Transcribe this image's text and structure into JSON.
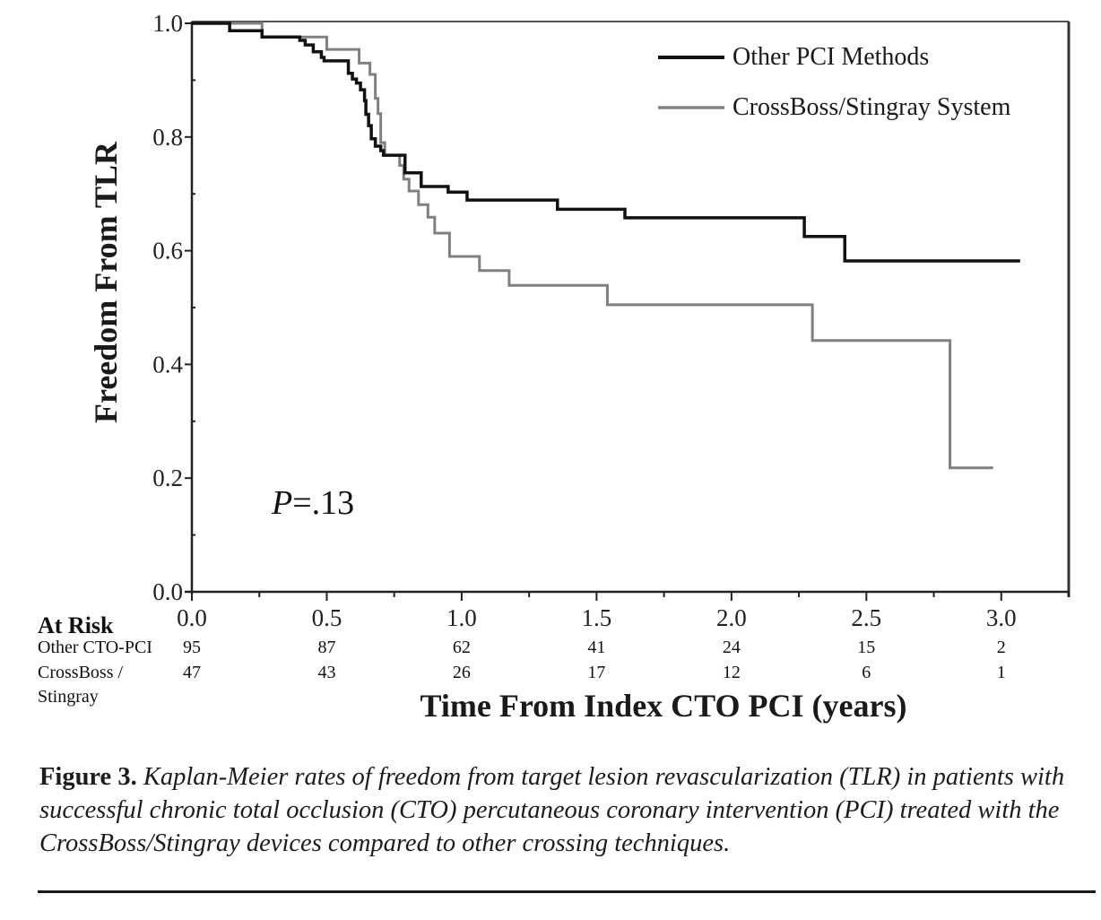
{
  "chart_data": {
    "type": "line",
    "subtype": "kaplan-meier-step",
    "title": "",
    "xlabel": "Time From Index CTO PCI (years)",
    "ylabel": "Freedom From TLR",
    "xlim": [
      0,
      3.25
    ],
    "ylim": [
      0,
      1.0
    ],
    "x_ticks": [
      0.0,
      0.5,
      1.0,
      1.5,
      2.0,
      2.5,
      3.0
    ],
    "x_tick_labels": [
      "0.0",
      "0.5",
      "1.0",
      "1.5",
      "2.0",
      "2.5",
      "3.0"
    ],
    "x_minor_ticks": [
      0.25,
      0.75,
      1.25,
      1.75,
      2.25,
      2.75,
      3.25
    ],
    "y_ticks": [
      0.0,
      0.2,
      0.4,
      0.6,
      0.8,
      1.0
    ],
    "y_tick_labels": [
      "0.0",
      "0.2",
      "0.4",
      "0.6",
      "0.8",
      "1.0"
    ],
    "y_minor_ticks": [
      0.1,
      0.3,
      0.5,
      0.7,
      0.9
    ],
    "grid": false,
    "legend_position": "top-right",
    "annotation": {
      "p_label": "P",
      "p_value": "=.13"
    },
    "series": [
      {
        "name": "Other PCI Methods",
        "color": "#111111",
        "end_time": 3.07,
        "steps": [
          [
            0,
            1.0
          ],
          [
            0.14,
            0.987
          ],
          [
            0.26,
            0.976
          ],
          [
            0.4,
            0.97
          ],
          [
            0.42,
            0.962
          ],
          [
            0.45,
            0.95
          ],
          [
            0.48,
            0.94
          ],
          [
            0.49,
            0.934
          ],
          [
            0.58,
            0.912
          ],
          [
            0.595,
            0.902
          ],
          [
            0.61,
            0.895
          ],
          [
            0.625,
            0.883
          ],
          [
            0.64,
            0.864
          ],
          [
            0.645,
            0.84
          ],
          [
            0.655,
            0.82
          ],
          [
            0.665,
            0.797
          ],
          [
            0.68,
            0.784
          ],
          [
            0.7,
            0.776
          ],
          [
            0.71,
            0.768
          ],
          [
            0.79,
            0.737
          ],
          [
            0.85,
            0.713
          ],
          [
            0.95,
            0.703
          ],
          [
            1.02,
            0.689
          ],
          [
            1.355,
            0.673
          ],
          [
            1.605,
            0.658
          ],
          [
            2.27,
            0.625
          ],
          [
            2.42,
            0.582
          ]
        ]
      },
      {
        "name": "CrossBoss/Stingray System",
        "color": "#808080",
        "end_time": 2.97,
        "steps": [
          [
            0,
            1.0
          ],
          [
            0.26,
            0.976
          ],
          [
            0.5,
            0.954
          ],
          [
            0.62,
            0.93
          ],
          [
            0.66,
            0.91
          ],
          [
            0.68,
            0.868
          ],
          [
            0.69,
            0.841
          ],
          [
            0.7,
            0.79
          ],
          [
            0.715,
            0.768
          ],
          [
            0.77,
            0.75
          ],
          [
            0.785,
            0.726
          ],
          [
            0.805,
            0.705
          ],
          [
            0.84,
            0.681
          ],
          [
            0.875,
            0.659
          ],
          [
            0.9,
            0.631
          ],
          [
            0.955,
            0.59
          ],
          [
            1.066,
            0.565
          ],
          [
            1.176,
            0.539
          ],
          [
            1.54,
            0.505
          ],
          [
            2.3,
            0.442
          ],
          [
            2.81,
            0.218
          ]
        ]
      }
    ],
    "at_risk": {
      "heading": "At Risk",
      "times": [
        0.0,
        0.5,
        1.0,
        1.5,
        2.0,
        2.5,
        3.0
      ],
      "rows": [
        {
          "label": "Other CTO-PCI",
          "values": [
            "95",
            "87",
            "62",
            "41",
            "24",
            "15",
            "2"
          ]
        },
        {
          "label": "CrossBoss /",
          "label_line2": "Stingray",
          "values": [
            "47",
            "43",
            "26",
            "17",
            "12",
            "6",
            "1"
          ]
        }
      ]
    }
  },
  "caption": {
    "label": "Figure 3.",
    "text": " Kaplan-Meier rates of freedom from target lesion revascularization (TLR) in patients with successful chronic total occlusion (CTO) percutaneous coronary intervention (PCI) treated with the CrossBoss/Stingray devices compared to other crossing techniques."
  }
}
